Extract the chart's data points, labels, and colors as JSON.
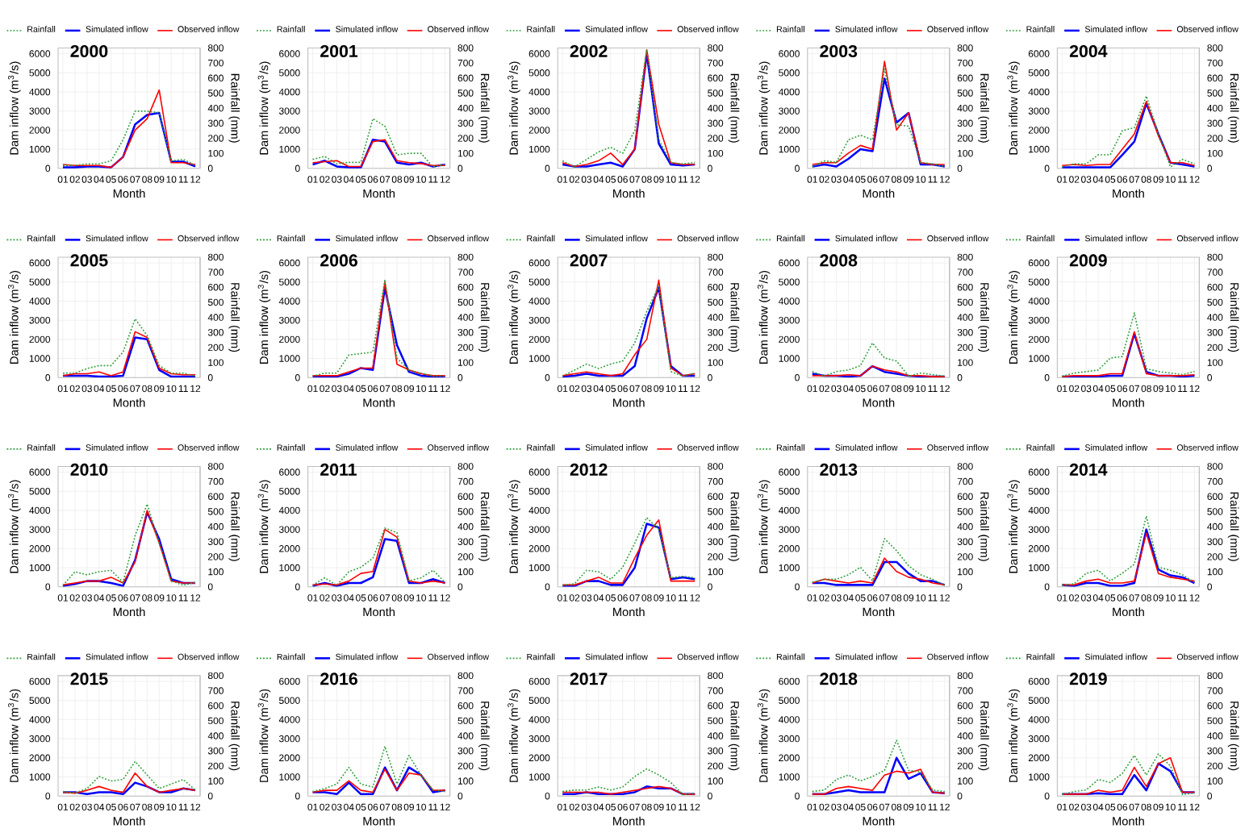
{
  "chart_data": [
    {
      "type": "line",
      "title": "2000",
      "categories": [
        "01",
        "02",
        "03",
        "04",
        "05",
        "06",
        "07",
        "08",
        "09",
        "10",
        "11",
        "12"
      ],
      "xlabel": "Month",
      "ylabel": "Dam inflow (m$^{3}$/s)",
      "y2label": "Rainfall (mm)",
      "ylim": [
        0,
        6300
      ],
      "yticks": [
        0,
        1000,
        2000,
        3000,
        4000,
        5000,
        6000
      ],
      "y2lim": [
        0,
        800
      ],
      "y2ticks": [
        0,
        100,
        200,
        300,
        400,
        500,
        600,
        700,
        800
      ],
      "grid": true,
      "legend": "top",
      "series": [
        {
          "name": "Rainfall",
          "color": "#2e9e3a",
          "line_style": "dotted",
          "axis": "y2",
          "values": [
            20,
            20,
            30,
            30,
            50,
            190,
            380,
            380,
            370,
            50,
            60,
            20
          ]
        },
        {
          "name": "Simulated inflow",
          "color": "#0000ff",
          "values": [
            50,
            50,
            100,
            100,
            50,
            600,
            2300,
            2800,
            2900,
            350,
            350,
            100
          ]
        },
        {
          "name": "Observed inflow",
          "color": "#ff0000",
          "values": [
            200,
            150,
            150,
            150,
            50,
            600,
            2000,
            2600,
            4100,
            300,
            300,
            200
          ]
        }
      ]
    },
    {
      "type": "line",
      "title": "2001",
      "categories": [
        "01",
        "02",
        "03",
        "04",
        "05",
        "06",
        "07",
        "08",
        "09",
        "10",
        "11",
        "12"
      ],
      "xlabel": "Month",
      "ylabel": "Dam inflow (m$^{3}$/s)",
      "y2label": "Rainfall (mm)",
      "ylim": [
        0,
        6300
      ],
      "yticks": [
        0,
        1000,
        2000,
        3000,
        4000,
        5000,
        6000
      ],
      "y2lim": [
        0,
        800
      ],
      "y2ticks": [
        0,
        100,
        200,
        300,
        400,
        500,
        600,
        700,
        800
      ],
      "grid": true,
      "legend": "top",
      "series": [
        {
          "name": "Rainfall",
          "color": "#2e9e3a",
          "line_style": "dotted",
          "axis": "y2",
          "values": [
            60,
            80,
            30,
            40,
            40,
            330,
            280,
            90,
            100,
            100,
            10,
            30
          ]
        },
        {
          "name": "Simulated inflow",
          "color": "#0000ff",
          "values": [
            200,
            400,
            100,
            50,
            50,
            1500,
            1400,
            300,
            200,
            300,
            100,
            200
          ]
        },
        {
          "name": "Observed inflow",
          "color": "#ff0000",
          "values": [
            300,
            350,
            400,
            100,
            100,
            1400,
            1500,
            400,
            300,
            250,
            150,
            150
          ]
        }
      ]
    },
    {
      "type": "line",
      "title": "2002",
      "categories": [
        "01",
        "02",
        "03",
        "04",
        "05",
        "06",
        "07",
        "08",
        "09",
        "10",
        "11",
        "12"
      ],
      "xlabel": "Month",
      "ylabel": "Dam inflow (m$^{3}$/s)",
      "y2label": "Rainfall (mm)",
      "ylim": [
        0,
        6300
      ],
      "yticks": [
        0,
        1000,
        2000,
        3000,
        4000,
        5000,
        6000
      ],
      "y2lim": [
        0,
        800
      ],
      "y2ticks": [
        0,
        100,
        200,
        300,
        400,
        500,
        600,
        700,
        800
      ],
      "grid": true,
      "legend": "top",
      "series": [
        {
          "name": "Rainfall",
          "color": "#2e9e3a",
          "line_style": "dotted",
          "axis": "y2",
          "values": [
            50,
            10,
            60,
            110,
            140,
            100,
            250,
            790,
            190,
            40,
            30,
            40
          ]
        },
        {
          "name": "Simulated inflow",
          "color": "#0000ff",
          "values": [
            200,
            100,
            100,
            200,
            300,
            100,
            1000,
            6000,
            1300,
            200,
            150,
            200
          ]
        },
        {
          "name": "Observed inflow",
          "color": "#ff0000",
          "values": [
            300,
            100,
            200,
            400,
            800,
            200,
            1000,
            6200,
            2300,
            300,
            200,
            200
          ]
        }
      ]
    },
    {
      "type": "line",
      "title": "2003",
      "categories": [
        "01",
        "02",
        "03",
        "04",
        "05",
        "06",
        "07",
        "08",
        "09",
        "10",
        "11",
        "12"
      ],
      "xlabel": "Month",
      "ylabel": "Dam inflow (m$^{3}$/s)",
      "y2label": "Rainfall (mm)",
      "ylim": [
        0,
        6300
      ],
      "yticks": [
        0,
        1000,
        2000,
        3000,
        4000,
        5000,
        6000
      ],
      "y2lim": [
        0,
        800
      ],
      "y2ticks": [
        0,
        100,
        200,
        300,
        400,
        500,
        600,
        700,
        800
      ],
      "grid": true,
      "legend": "top",
      "series": [
        {
          "name": "Rainfall",
          "color": "#2e9e3a",
          "line_style": "dotted",
          "axis": "y2",
          "values": [
            10,
            50,
            40,
            190,
            220,
            190,
            660,
            290,
            280,
            40,
            30,
            10
          ]
        },
        {
          "name": "Simulated inflow",
          "color": "#0000ff",
          "values": [
            100,
            200,
            100,
            500,
            1000,
            900,
            4700,
            2400,
            2900,
            200,
            200,
            100
          ]
        },
        {
          "name": "Observed inflow",
          "color": "#ff0000",
          "values": [
            200,
            300,
            300,
            800,
            1200,
            1000,
            5600,
            2000,
            2900,
            300,
            200,
            200
          ]
        }
      ]
    },
    {
      "type": "line",
      "title": "2004",
      "categories": [
        "01",
        "02",
        "03",
        "04",
        "05",
        "06",
        "07",
        "08",
        "09",
        "10",
        "11",
        "12"
      ],
      "xlabel": "Month",
      "ylabel": "Dam inflow (m$^{3}$/s)",
      "y2label": "Rainfall (mm)",
      "ylim": [
        0,
        6300
      ],
      "yticks": [
        0,
        1000,
        2000,
        3000,
        4000,
        5000,
        6000
      ],
      "y2lim": [
        0,
        800
      ],
      "y2ticks": [
        0,
        100,
        200,
        300,
        400,
        500,
        600,
        700,
        800
      ],
      "grid": true,
      "legend": "top",
      "series": [
        {
          "name": "Rainfall",
          "color": "#2e9e3a",
          "line_style": "dotted",
          "axis": "y2",
          "values": [
            10,
            30,
            30,
            90,
            90,
            250,
            270,
            480,
            230,
            10,
            60,
            30
          ]
        },
        {
          "name": "Simulated inflow",
          "color": "#0000ff",
          "values": [
            50,
            50,
            50,
            50,
            50,
            700,
            1400,
            3400,
            1800,
            300,
            200,
            100
          ]
        },
        {
          "name": "Observed inflow",
          "color": "#ff0000",
          "values": [
            150,
            200,
            150,
            200,
            200,
            1000,
            1800,
            3500,
            1700,
            300,
            300,
            150
          ]
        }
      ]
    },
    {
      "type": "line",
      "title": "2005",
      "categories": [
        "01",
        "02",
        "03",
        "04",
        "05",
        "06",
        "07",
        "08",
        "09",
        "10",
        "11",
        "12"
      ],
      "xlabel": "Month",
      "ylabel": "Dam inflow (m$^{3}$/s)",
      "y2label": "Rainfall (mm)",
      "ylim": [
        0,
        6300
      ],
      "yticks": [
        0,
        1000,
        2000,
        3000,
        4000,
        5000,
        6000
      ],
      "y2lim": [
        0,
        800
      ],
      "y2ticks": [
        0,
        100,
        200,
        300,
        400,
        500,
        600,
        700,
        800
      ],
      "grid": true,
      "legend": "top",
      "series": [
        {
          "name": "Rainfall",
          "color": "#2e9e3a",
          "line_style": "dotted",
          "axis": "y2",
          "values": [
            30,
            30,
            60,
            80,
            80,
            170,
            390,
            280,
            80,
            30,
            30,
            10
          ]
        },
        {
          "name": "Simulated inflow",
          "color": "#0000ff",
          "values": [
            100,
            100,
            100,
            50,
            50,
            100,
            2100,
            2000,
            400,
            50,
            50,
            50
          ]
        },
        {
          "name": "Observed inflow",
          "color": "#ff0000",
          "values": [
            100,
            200,
            200,
            300,
            100,
            300,
            2400,
            2100,
            500,
            200,
            150,
            150
          ]
        }
      ]
    },
    {
      "type": "line",
      "title": "2006",
      "categories": [
        "01",
        "02",
        "03",
        "04",
        "05",
        "06",
        "07",
        "08",
        "09",
        "10",
        "11",
        "12"
      ],
      "xlabel": "Month",
      "ylabel": "Dam inflow (m$^{3}$/s)",
      "y2label": "Rainfall (mm)",
      "ylim": [
        0,
        6300
      ],
      "yticks": [
        0,
        1000,
        2000,
        3000,
        4000,
        5000,
        6000
      ],
      "y2lim": [
        0,
        800
      ],
      "y2ticks": [
        0,
        100,
        200,
        300,
        400,
        500,
        600,
        700,
        800
      ],
      "grid": true,
      "legend": "top",
      "series": [
        {
          "name": "Rainfall",
          "color": "#2e9e3a",
          "line_style": "dotted",
          "axis": "y2",
          "values": [
            10,
            30,
            30,
            150,
            160,
            170,
            650,
            130,
            50,
            30,
            10,
            10
          ]
        },
        {
          "name": "Simulated inflow",
          "color": "#0000ff",
          "values": [
            50,
            50,
            50,
            200,
            500,
            400,
            4700,
            1700,
            300,
            100,
            50,
            50
          ]
        },
        {
          "name": "Observed inflow",
          "color": "#ff0000",
          "values": [
            100,
            100,
            100,
            300,
            500,
            500,
            5000,
            700,
            400,
            200,
            100,
            100
          ]
        }
      ]
    },
    {
      "type": "line",
      "title": "2007",
      "categories": [
        "01",
        "02",
        "03",
        "04",
        "05",
        "06",
        "07",
        "08",
        "09",
        "10",
        "11",
        "12"
      ],
      "xlabel": "Month",
      "ylabel": "Dam inflow (m$^{3}$/s)",
      "y2label": "Rainfall (mm)",
      "ylim": [
        0,
        6300
      ],
      "yticks": [
        0,
        1000,
        2000,
        3000,
        4000,
        5000,
        6000
      ],
      "y2lim": [
        0,
        800
      ],
      "y2ticks": [
        0,
        100,
        200,
        300,
        400,
        500,
        600,
        700,
        800
      ],
      "grid": true,
      "legend": "top",
      "series": [
        {
          "name": "Rainfall",
          "color": "#2e9e3a",
          "line_style": "dotted",
          "axis": "y2",
          "values": [
            10,
            50,
            90,
            60,
            90,
            110,
            230,
            440,
            610,
            40,
            10,
            30
          ]
        },
        {
          "name": "Simulated inflow",
          "color": "#0000ff",
          "values": [
            50,
            100,
            200,
            100,
            100,
            100,
            600,
            3100,
            4700,
            600,
            100,
            100
          ]
        },
        {
          "name": "Observed inflow",
          "color": "#ff0000",
          "values": [
            100,
            200,
            300,
            200,
            100,
            200,
            1200,
            2000,
            5100,
            500,
            100,
            200
          ]
        }
      ]
    },
    {
      "type": "line",
      "title": "2008",
      "categories": [
        "01",
        "02",
        "03",
        "04",
        "05",
        "06",
        "07",
        "08",
        "09",
        "10",
        "11",
        "12"
      ],
      "xlabel": "Month",
      "ylabel": "Dam inflow (m$^{3}$/s)",
      "y2label": "Rainfall (mm)",
      "ylim": [
        0,
        6300
      ],
      "yticks": [
        0,
        1000,
        2000,
        3000,
        4000,
        5000,
        6000
      ],
      "y2lim": [
        0,
        800
      ],
      "y2ticks": [
        0,
        100,
        200,
        300,
        400,
        500,
        600,
        700,
        800
      ],
      "grid": true,
      "legend": "top",
      "series": [
        {
          "name": "Rainfall",
          "color": "#2e9e3a",
          "line_style": "dotted",
          "axis": "y2",
          "values": [
            40,
            10,
            40,
            50,
            80,
            230,
            130,
            110,
            10,
            30,
            20,
            10
          ]
        },
        {
          "name": "Simulated inflow",
          "color": "#0000ff",
          "values": [
            200,
            100,
            100,
            50,
            100,
            600,
            300,
            200,
            100,
            50,
            50,
            50
          ]
        },
        {
          "name": "Observed inflow",
          "color": "#ff0000",
          "values": [
            100,
            100,
            100,
            150,
            100,
            600,
            400,
            300,
            100,
            100,
            50,
            50
          ]
        }
      ]
    },
    {
      "type": "line",
      "title": "2009",
      "categories": [
        "01",
        "02",
        "03",
        "04",
        "05",
        "06",
        "07",
        "08",
        "09",
        "10",
        "11",
        "12"
      ],
      "xlabel": "Month",
      "ylabel": "Dam inflow (m$^{3}$/s)",
      "y2label": "Rainfall (mm)",
      "ylim": [
        0,
        6300
      ],
      "yticks": [
        0,
        1000,
        2000,
        3000,
        4000,
        5000,
        6000
      ],
      "y2lim": [
        0,
        800
      ],
      "y2ticks": [
        0,
        100,
        200,
        300,
        400,
        500,
        600,
        700,
        800
      ],
      "grid": true,
      "legend": "top",
      "series": [
        {
          "name": "Rainfall",
          "color": "#2e9e3a",
          "line_style": "dotted",
          "axis": "y2",
          "values": [
            10,
            30,
            40,
            50,
            130,
            140,
            430,
            60,
            40,
            30,
            20,
            40
          ]
        },
        {
          "name": "Simulated inflow",
          "color": "#0000ff",
          "values": [
            50,
            50,
            50,
            50,
            100,
            100,
            2300,
            300,
            100,
            100,
            50,
            100
          ]
        },
        {
          "name": "Observed inflow",
          "color": "#ff0000",
          "values": [
            50,
            100,
            100,
            100,
            200,
            200,
            2400,
            200,
            100,
            100,
            100,
            150
          ]
        }
      ]
    },
    {
      "type": "line",
      "title": "2010",
      "categories": [
        "01",
        "02",
        "03",
        "04",
        "05",
        "06",
        "07",
        "08",
        "09",
        "10",
        "11",
        "12"
      ],
      "xlabel": "Month",
      "ylabel": "Dam inflow (m$^{3}$/s)",
      "y2label": "Rainfall (mm)",
      "ylim": [
        0,
        6300
      ],
      "yticks": [
        0,
        1000,
        2000,
        3000,
        4000,
        5000,
        6000
      ],
      "y2lim": [
        0,
        800
      ],
      "y2ticks": [
        0,
        100,
        200,
        300,
        400,
        500,
        600,
        700,
        800
      ],
      "grid": true,
      "legend": "top",
      "series": [
        {
          "name": "Rainfall",
          "color": "#2e9e3a",
          "line_style": "dotted",
          "axis": "y2",
          "values": [
            10,
            100,
            80,
            100,
            110,
            30,
            340,
            550,
            290,
            40,
            10,
            30
          ]
        },
        {
          "name": "Simulated inflow",
          "color": "#0000ff",
          "values": [
            50,
            150,
            300,
            300,
            200,
            50,
            1400,
            3900,
            2500,
            400,
            200,
            200
          ]
        },
        {
          "name": "Observed inflow",
          "color": "#ff0000",
          "values": [
            100,
            200,
            300,
            300,
            500,
            200,
            1300,
            4000,
            2300,
            300,
            200,
            200
          ]
        }
      ]
    },
    {
      "type": "line",
      "title": "2011",
      "categories": [
        "01",
        "02",
        "03",
        "04",
        "05",
        "06",
        "07",
        "08",
        "09",
        "10",
        "11",
        "12"
      ],
      "xlabel": "Month",
      "ylabel": "Dam inflow (m$^{3}$/s)",
      "y2label": "Rainfall (mm)",
      "ylim": [
        0,
        6300
      ],
      "yticks": [
        0,
        1000,
        2000,
        3000,
        4000,
        5000,
        6000
      ],
      "y2lim": [
        0,
        800
      ],
      "y2ticks": [
        0,
        100,
        200,
        300,
        400,
        500,
        600,
        700,
        800
      ],
      "grid": true,
      "legend": "top",
      "series": [
        {
          "name": "Rainfall",
          "color": "#2e9e3a",
          "line_style": "dotted",
          "axis": "y2",
          "values": [
            10,
            60,
            10,
            100,
            130,
            190,
            390,
            360,
            40,
            60,
            110,
            30
          ]
        },
        {
          "name": "Simulated inflow",
          "color": "#0000ff",
          "values": [
            50,
            200,
            50,
            200,
            200,
            500,
            2500,
            2400,
            200,
            200,
            400,
            200
          ]
        },
        {
          "name": "Observed inflow",
          "color": "#ff0000",
          "values": [
            100,
            150,
            100,
            300,
            700,
            800,
            3000,
            2600,
            300,
            200,
            300,
            200
          ]
        }
      ]
    },
    {
      "type": "line",
      "title": "2012",
      "categories": [
        "01",
        "02",
        "03",
        "04",
        "05",
        "06",
        "07",
        "08",
        "09",
        "10",
        "11",
        "12"
      ],
      "xlabel": "Month",
      "ylabel": "Dam inflow (m$^{3}$/s)",
      "y2label": "Rainfall (mm)",
      "ylim": [
        0,
        6300
      ],
      "yticks": [
        0,
        1000,
        2000,
        3000,
        4000,
        5000,
        6000
      ],
      "y2lim": [
        0,
        800
      ],
      "y2ticks": [
        0,
        100,
        200,
        300,
        400,
        500,
        600,
        700,
        800
      ],
      "grid": true,
      "legend": "top",
      "series": [
        {
          "name": "Rainfall",
          "color": "#2e9e3a",
          "line_style": "dotted",
          "axis": "y2",
          "values": [
            10,
            20,
            110,
            100,
            50,
            130,
            290,
            460,
            380,
            60,
            70,
            60
          ]
        },
        {
          "name": "Simulated inflow",
          "color": "#0000ff",
          "values": [
            50,
            50,
            300,
            300,
            100,
            100,
            1000,
            3300,
            3100,
            400,
            500,
            400
          ]
        },
        {
          "name": "Observed inflow",
          "color": "#ff0000",
          "values": [
            100,
            100,
            300,
            500,
            200,
            200,
            1500,
            2700,
            3500,
            300,
            300,
            300
          ]
        }
      ]
    },
    {
      "type": "line",
      "title": "2013",
      "categories": [
        "01",
        "02",
        "03",
        "04",
        "05",
        "06",
        "07",
        "08",
        "09",
        "10",
        "11",
        "12"
      ],
      "xlabel": "Month",
      "ylabel": "Dam inflow (m$^{3}$/s)",
      "y2label": "Rainfall (mm)",
      "ylim": [
        0,
        6300
      ],
      "yticks": [
        0,
        1000,
        2000,
        3000,
        4000,
        5000,
        6000
      ],
      "y2lim": [
        0,
        800
      ],
      "y2ticks": [
        0,
        100,
        200,
        300,
        400,
        500,
        600,
        700,
        800
      ],
      "grid": true,
      "legend": "top",
      "series": [
        {
          "name": "Rainfall",
          "color": "#2e9e3a",
          "line_style": "dotted",
          "axis": "y2",
          "values": [
            30,
            50,
            50,
            80,
            130,
            40,
            320,
            240,
            140,
            80,
            50,
            10
          ]
        },
        {
          "name": "Simulated inflow",
          "color": "#0000ff",
          "values": [
            200,
            200,
            100,
            100,
            100,
            100,
            1300,
            1300,
            700,
            300,
            300,
            100
          ]
        },
        {
          "name": "Observed inflow",
          "color": "#ff0000",
          "values": [
            200,
            400,
            300,
            200,
            300,
            200,
            1500,
            800,
            500,
            400,
            200,
            100
          ]
        }
      ]
    },
    {
      "type": "line",
      "title": "2014",
      "categories": [
        "01",
        "02",
        "03",
        "04",
        "05",
        "06",
        "07",
        "08",
        "09",
        "10",
        "11",
        "12"
      ],
      "xlabel": "Month",
      "ylabel": "Dam inflow (m$^{3}$/s)",
      "y2label": "Rainfall (mm)",
      "ylim": [
        0,
        6300
      ],
      "yticks": [
        0,
        1000,
        2000,
        3000,
        4000,
        5000,
        6000
      ],
      "y2lim": [
        0,
        800
      ],
      "y2ticks": [
        0,
        100,
        200,
        300,
        400,
        500,
        600,
        700,
        800
      ],
      "grid": true,
      "legend": "top",
      "series": [
        {
          "name": "Rainfall",
          "color": "#2e9e3a",
          "line_style": "dotted",
          "axis": "y2",
          "values": [
            10,
            20,
            90,
            110,
            40,
            90,
            150,
            470,
            130,
            110,
            80,
            30
          ]
        },
        {
          "name": "Simulated inflow",
          "color": "#0000ff",
          "values": [
            100,
            50,
            200,
            200,
            50,
            50,
            200,
            3000,
            900,
            600,
            500,
            200
          ]
        },
        {
          "name": "Observed inflow",
          "color": "#ff0000",
          "values": [
            100,
            100,
            300,
            400,
            200,
            200,
            300,
            2800,
            700,
            500,
            400,
            300
          ]
        }
      ]
    },
    {
      "type": "line",
      "title": "2015",
      "categories": [
        "01",
        "02",
        "03",
        "04",
        "05",
        "06",
        "07",
        "08",
        "09",
        "10",
        "11",
        "12"
      ],
      "xlabel": "Month",
      "ylabel": "Dam inflow (m$^{3}$/s)",
      "y2label": "Rainfall (mm)",
      "ylim": [
        0,
        6300
      ],
      "yticks": [
        0,
        1000,
        2000,
        3000,
        4000,
        5000,
        6000
      ],
      "y2lim": [
        0,
        800
      ],
      "y2ticks": [
        0,
        100,
        200,
        300,
        400,
        500,
        600,
        700,
        800
      ],
      "grid": true,
      "legend": "top",
      "series": [
        {
          "name": "Rainfall",
          "color": "#2e9e3a",
          "line_style": "dotted",
          "axis": "y2",
          "values": [
            30,
            20,
            50,
            130,
            100,
            110,
            230,
            140,
            50,
            80,
            110,
            40
          ]
        },
        {
          "name": "Simulated inflow",
          "color": "#0000ff",
          "values": [
            200,
            200,
            100,
            200,
            200,
            100,
            700,
            500,
            200,
            200,
            400,
            300
          ]
        },
        {
          "name": "Observed inflow",
          "color": "#ff0000",
          "values": [
            200,
            150,
            300,
            500,
            300,
            200,
            1200,
            500,
            200,
            300,
            400,
            300
          ]
        }
      ]
    },
    {
      "type": "line",
      "title": "2016",
      "categories": [
        "01",
        "02",
        "03",
        "04",
        "05",
        "06",
        "07",
        "08",
        "09",
        "10",
        "11",
        "12"
      ],
      "xlabel": "Month",
      "ylabel": "Dam inflow (m$^{3}$/s)",
      "y2label": "Rainfall (mm)",
      "ylim": [
        0,
        6300
      ],
      "yticks": [
        0,
        1000,
        2000,
        3000,
        4000,
        5000,
        6000
      ],
      "y2lim": [
        0,
        800
      ],
      "y2ticks": [
        0,
        100,
        200,
        300,
        400,
        500,
        600,
        700,
        800
      ],
      "grid": true,
      "legend": "top",
      "series": [
        {
          "name": "Rainfall",
          "color": "#2e9e3a",
          "line_style": "dotted",
          "axis": "y2",
          "values": [
            30,
            50,
            80,
            190,
            80,
            60,
            330,
            80,
            270,
            140,
            40,
            30
          ]
        },
        {
          "name": "Simulated inflow",
          "color": "#0000ff",
          "values": [
            200,
            200,
            100,
            700,
            100,
            100,
            1500,
            300,
            1500,
            1100,
            200,
            300
          ]
        },
        {
          "name": "Observed inflow",
          "color": "#ff0000",
          "values": [
            200,
            300,
            300,
            800,
            300,
            200,
            1400,
            300,
            1200,
            1100,
            300,
            300
          ]
        }
      ]
    },
    {
      "type": "line",
      "title": "2017",
      "categories": [
        "01",
        "02",
        "03",
        "04",
        "05",
        "06",
        "07",
        "08",
        "09",
        "10",
        "11",
        "12"
      ],
      "xlabel": "Month",
      "ylabel": "Dam inflow (m$^{3}$/s)",
      "y2label": "Rainfall (mm)",
      "ylim": [
        0,
        6300
      ],
      "yticks": [
        0,
        1000,
        2000,
        3000,
        4000,
        5000,
        6000
      ],
      "y2lim": [
        0,
        800
      ],
      "y2ticks": [
        0,
        100,
        200,
        300,
        400,
        500,
        600,
        700,
        800
      ],
      "grid": true,
      "legend": "top",
      "series": [
        {
          "name": "Rainfall",
          "color": "#2e9e3a",
          "line_style": "dotted",
          "axis": "y2",
          "values": [
            30,
            40,
            40,
            60,
            40,
            60,
            130,
            180,
            140,
            90,
            10,
            20
          ]
        },
        {
          "name": "Simulated inflow",
          "color": "#0000ff",
          "values": [
            100,
            100,
            200,
            100,
            100,
            100,
            200,
            500,
            400,
            400,
            100,
            100
          ]
        },
        {
          "name": "Observed inflow",
          "color": "#ff0000",
          "values": [
            200,
            200,
            200,
            200,
            100,
            200,
            300,
            400,
            500,
            400,
            100,
            100
          ]
        }
      ]
    },
    {
      "type": "line",
      "title": "2018",
      "categories": [
        "01",
        "02",
        "03",
        "04",
        "05",
        "06",
        "07",
        "08",
        "09",
        "10",
        "11",
        "12"
      ],
      "xlabel": "Month",
      "ylabel": "Dam inflow (m$^{3}$/s)",
      "y2label": "Rainfall (mm)",
      "ylim": [
        0,
        6300
      ],
      "yticks": [
        0,
        1000,
        2000,
        3000,
        4000,
        5000,
        6000
      ],
      "y2lim": [
        0,
        800
      ],
      "y2ticks": [
        0,
        100,
        200,
        300,
        400,
        500,
        600,
        700,
        800
      ],
      "grid": true,
      "legend": "top",
      "series": [
        {
          "name": "Rainfall",
          "color": "#2e9e3a",
          "line_style": "dotted",
          "axis": "y2",
          "values": [
            30,
            40,
            110,
            140,
            100,
            130,
            170,
            370,
            170,
            160,
            40,
            30
          ]
        },
        {
          "name": "Simulated inflow",
          "color": "#0000ff",
          "values": [
            100,
            100,
            200,
            300,
            200,
            200,
            200,
            2000,
            900,
            1200,
            200,
            150
          ]
        },
        {
          "name": "Observed inflow",
          "color": "#ff0000",
          "values": [
            100,
            100,
            400,
            500,
            400,
            300,
            1100,
            1300,
            1200,
            1400,
            200,
            150
          ]
        }
      ]
    },
    {
      "type": "line",
      "title": "2019",
      "categories": [
        "01",
        "02",
        "03",
        "04",
        "05",
        "06",
        "07",
        "08",
        "09",
        "10",
        "11",
        "12"
      ],
      "xlabel": "Month",
      "ylabel": "Dam inflow (m$^{3}$/s)",
      "y2label": "Rainfall (mm)",
      "ylim": [
        0,
        6300
      ],
      "yticks": [
        0,
        1000,
        2000,
        3000,
        4000,
        5000,
        6000
      ],
      "y2lim": [
        0,
        800
      ],
      "y2ticks": [
        0,
        100,
        200,
        300,
        400,
        500,
        600,
        700,
        800
      ],
      "grid": true,
      "legend": "top",
      "series": [
        {
          "name": "Rainfall",
          "color": "#2e9e3a",
          "line_style": "dotted",
          "axis": "y2",
          "values": [
            10,
            30,
            40,
            110,
            90,
            150,
            270,
            140,
            280,
            200,
            10,
            20
          ]
        },
        {
          "name": "Simulated inflow",
          "color": "#0000ff",
          "values": [
            100,
            100,
            100,
            150,
            100,
            100,
            1100,
            300,
            1700,
            1300,
            200,
            200
          ]
        },
        {
          "name": "Observed inflow",
          "color": "#ff0000",
          "values": [
            100,
            100,
            100,
            300,
            200,
            300,
            1500,
            500,
            1700,
            2000,
            200,
            200
          ]
        }
      ]
    }
  ]
}
